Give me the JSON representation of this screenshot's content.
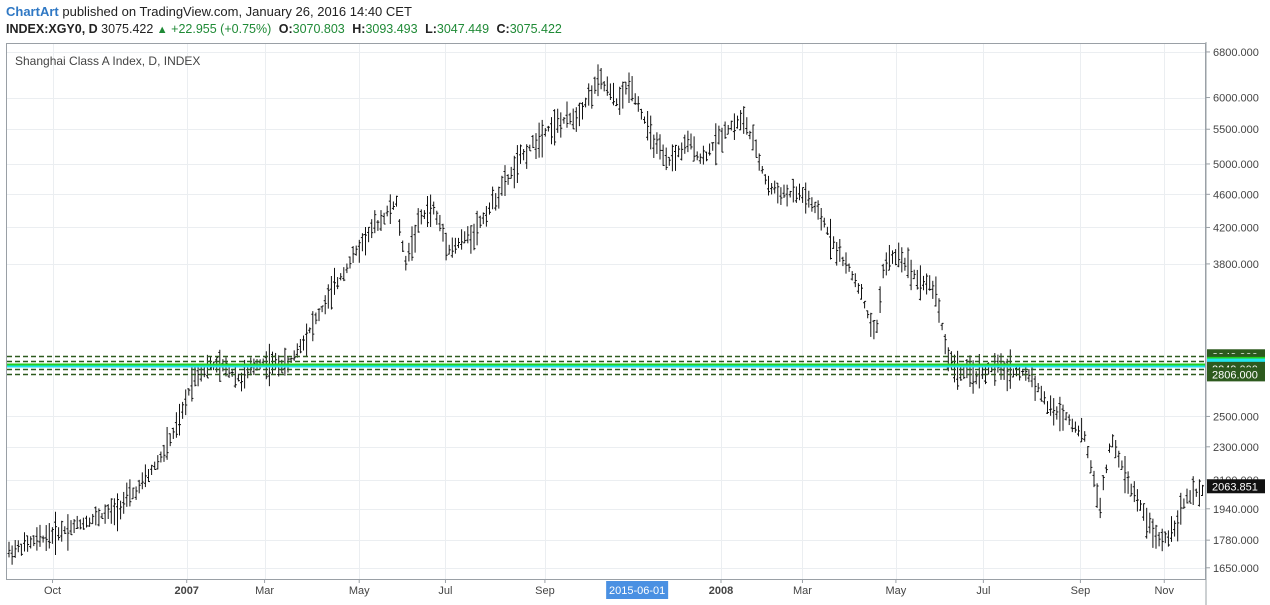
{
  "header": {
    "brand": "ChartArt",
    "published": "published on TradingView.com, January 26, 2016 14:40 CET",
    "symbol": "INDEX:XGY0, D",
    "last": "3075.422",
    "arrow": "▲",
    "change": "+22.955 (+0.75%)",
    "o_label": "O:",
    "o_value": "3070.803",
    "h_label": "H:",
    "h_value": "3093.493",
    "l_label": "L:",
    "l_value": "3047.449",
    "c_label": "C:",
    "c_value": "3075.422"
  },
  "chart_data": {
    "type": "bar",
    "title": "Shanghai Class A Index, D, INDEX",
    "scale": "log",
    "ylim": [
      1600,
      6950
    ],
    "grid": true,
    "y_ticks": [
      6800,
      6000,
      5500,
      5000,
      4600,
      4200,
      3800,
      2500,
      2300,
      2100,
      1940,
      1780,
      1650
    ],
    "y_tick_labels": [
      "6800.000",
      "6000.000",
      "5500.000",
      "5000.000",
      "4600.000",
      "4200.000",
      "3800.000",
      "2500.000",
      "2300.000",
      "2100.000",
      "1940.000",
      "1780.000",
      "1650.000"
    ],
    "x_ticks": [
      {
        "label": "Oct",
        "bold": false,
        "frac": 0.038
      },
      {
        "label": "2007",
        "bold": true,
        "frac": 0.15
      },
      {
        "label": "Mar",
        "bold": false,
        "frac": 0.215
      },
      {
        "label": "May",
        "bold": false,
        "frac": 0.294
      },
      {
        "label": "Jul",
        "bold": false,
        "frac": 0.366
      },
      {
        "label": "Sep",
        "bold": false,
        "frac": 0.449
      },
      {
        "label": "2008",
        "bold": true,
        "frac": 0.596
      },
      {
        "label": "Mar",
        "bold": false,
        "frac": 0.664
      },
      {
        "label": "May",
        "bold": false,
        "frac": 0.742
      },
      {
        "label": "Jul",
        "bold": false,
        "frac": 0.815
      },
      {
        "label": "Sep",
        "bold": false,
        "frac": 0.896
      },
      {
        "label": "Nov",
        "bold": false,
        "frac": 0.966
      }
    ],
    "cursor_date": "2015-06-01",
    "cursor_frac": 0.526,
    "path": [
      [
        0.0,
        1720
      ],
      [
        0.03,
        1790
      ],
      [
        0.06,
        1860
      ],
      [
        0.09,
        1930
      ],
      [
        0.11,
        2050
      ],
      [
        0.13,
        2250
      ],
      [
        0.145,
        2480
      ],
      [
        0.155,
        2780
      ],
      [
        0.17,
        2880
      ],
      [
        0.185,
        2850
      ],
      [
        0.195,
        2760
      ],
      [
        0.21,
        2900
      ],
      [
        0.235,
        2880
      ],
      [
        0.26,
        3300
      ],
      [
        0.28,
        3700
      ],
      [
        0.3,
        4100
      ],
      [
        0.325,
        4500
      ],
      [
        0.332,
        3800
      ],
      [
        0.345,
        4300
      ],
      [
        0.355,
        4450
      ],
      [
        0.37,
        3950
      ],
      [
        0.39,
        4150
      ],
      [
        0.41,
        4600
      ],
      [
        0.43,
        5100
      ],
      [
        0.45,
        5500
      ],
      [
        0.475,
        5700
      ],
      [
        0.495,
        6300
      ],
      [
        0.51,
        5900
      ],
      [
        0.52,
        6250
      ],
      [
        0.535,
        5500
      ],
      [
        0.55,
        5000
      ],
      [
        0.57,
        5300
      ],
      [
        0.58,
        5050
      ],
      [
        0.6,
        5500
      ],
      [
        0.615,
        5650
      ],
      [
        0.625,
        5200
      ],
      [
        0.635,
        4700
      ],
      [
        0.65,
        4600
      ],
      [
        0.665,
        4600
      ],
      [
        0.68,
        4300
      ],
      [
        0.695,
        3900
      ],
      [
        0.71,
        3600
      ],
      [
        0.725,
        3100
      ],
      [
        0.732,
        3800
      ],
      [
        0.745,
        3900
      ],
      [
        0.76,
        3650
      ],
      [
        0.775,
        3550
      ],
      [
        0.785,
        2950
      ],
      [
        0.795,
        2820
      ],
      [
        0.81,
        2800
      ],
      [
        0.825,
        2860
      ],
      [
        0.84,
        2830
      ],
      [
        0.855,
        2800
      ],
      [
        0.87,
        2550
      ],
      [
        0.885,
        2500
      ],
      [
        0.9,
        2350
      ],
      [
        0.912,
        1950
      ],
      [
        0.922,
        2350
      ],
      [
        0.935,
        2100
      ],
      [
        0.95,
        1900
      ],
      [
        0.96,
        1780
      ],
      [
        0.97,
        1800
      ],
      [
        0.985,
        2000
      ],
      [
        1.0,
        2040
      ]
    ],
    "levels": [
      {
        "value": 2949,
        "label": "2949.000",
        "bg": "#2d5a1e",
        "fg": "#ffffff",
        "line": "#2d5a1e",
        "style": "dash"
      },
      {
        "value": 2912,
        "label": "2912.000",
        "bg": "#2d5a1e",
        "fg": "#ffffff",
        "line": "#2d5a1e",
        "style": "dash"
      },
      {
        "value": 2888,
        "label": "2888.000",
        "bg": "#22d11f",
        "fg": "#111111",
        "line": "#22d11f",
        "style": "solid"
      },
      {
        "value": 2875,
        "label": "2875.000",
        "bg": "#22e4f0",
        "fg": "#111111",
        "line": "#22e4f0",
        "style": "solid"
      },
      {
        "value": 2849,
        "label": "2849.000",
        "bg": "#2d5a1e",
        "fg": "#ffffff",
        "line": "#2d5a1e",
        "style": "dash"
      },
      {
        "value": 2806,
        "label": "2806.000",
        "bg": "#2d5a1e",
        "fg": "#ffffff",
        "line": "#2d5a1e",
        "style": "dash"
      }
    ],
    "last_price": {
      "value": 2063.851,
      "label": "2063.851",
      "bg": "#111111",
      "fg": "#ffffff"
    }
  }
}
